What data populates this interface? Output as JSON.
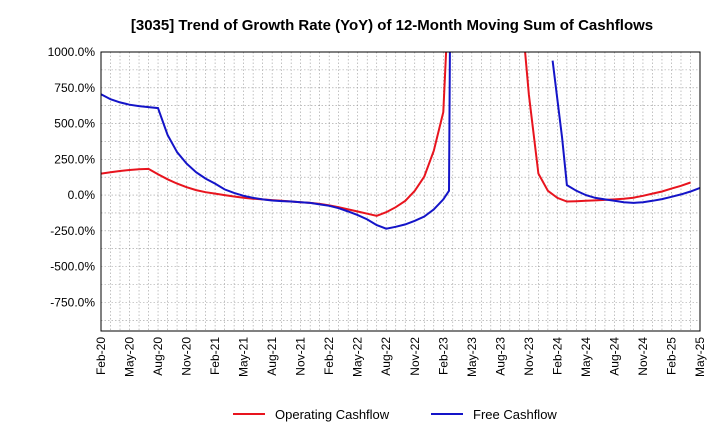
{
  "chart_data": {
    "type": "line",
    "title": "[3035]  Trend of Growth Rate (YoY) of 12-Month Moving Sum of Cashflows",
    "xlabel": "",
    "ylabel": "",
    "ylim": [
      -950,
      1000
    ],
    "grid": true,
    "legend_position": "bottom",
    "y_ticks": [
      1000,
      750,
      500,
      250,
      0,
      -250,
      -500,
      -750
    ],
    "y_tick_labels": [
      "1000.0%",
      "750.0%",
      "500.0%",
      "250.0%",
      "0.0%",
      "-250.0%",
      "-500.0%",
      "-750.0%"
    ],
    "x_ticks": [
      "Feb-20",
      "May-20",
      "Aug-20",
      "Nov-20",
      "Feb-21",
      "May-21",
      "Aug-21",
      "Nov-21",
      "Feb-22",
      "May-22",
      "Aug-22",
      "Nov-22",
      "Feb-23",
      "May-23",
      "Aug-23",
      "Nov-23",
      "Feb-24",
      "May-24",
      "Aug-24",
      "Nov-24",
      "Feb-25",
      "May-25"
    ],
    "series": [
      {
        "name": "Operating Cashflow",
        "color": "#e8141e",
        "points": [
          [
            0,
            150
          ],
          [
            1,
            160
          ],
          [
            2,
            168
          ],
          [
            3,
            175
          ],
          [
            4,
            180
          ],
          [
            5,
            183
          ],
          [
            6,
            145
          ],
          [
            7,
            110
          ],
          [
            8,
            80
          ],
          [
            9,
            55
          ],
          [
            10,
            35
          ],
          [
            11,
            20
          ],
          [
            12,
            10
          ],
          [
            13,
            0
          ],
          [
            14,
            -10
          ],
          [
            15,
            -18
          ],
          [
            16,
            -25
          ],
          [
            17,
            -30
          ],
          [
            18,
            -35
          ],
          [
            19,
            -40
          ],
          [
            20,
            -45
          ],
          [
            21,
            -50
          ],
          [
            22,
            -55
          ],
          [
            23,
            -62
          ],
          [
            24,
            -72
          ],
          [
            25,
            -85
          ],
          [
            26,
            -100
          ],
          [
            27,
            -115
          ],
          [
            28,
            -130
          ],
          [
            29,
            -145
          ],
          [
            30,
            -120
          ],
          [
            31,
            -85
          ],
          [
            32,
            -40
          ],
          [
            33,
            30
          ],
          [
            34,
            130
          ],
          [
            35,
            310
          ],
          [
            36,
            580
          ],
          [
            36.3,
            1000
          ]
        ],
        "points_b": [
          [
            44.6,
            1000
          ],
          [
            45,
            700
          ],
          [
            46,
            150
          ],
          [
            47,
            30
          ],
          [
            48,
            -20
          ],
          [
            49,
            -45
          ],
          [
            50,
            -43
          ],
          [
            51,
            -40
          ],
          [
            52,
            -37
          ],
          [
            53,
            -34
          ],
          [
            54,
            -30
          ],
          [
            55,
            -25
          ],
          [
            56,
            -18
          ],
          [
            57,
            -5
          ],
          [
            58,
            10
          ],
          [
            59,
            25
          ],
          [
            60,
            45
          ],
          [
            61,
            65
          ],
          [
            62,
            88
          ]
        ]
      },
      {
        "name": "Free Cashflow",
        "color": "#1414c8",
        "points": [
          [
            0,
            705
          ],
          [
            1,
            670
          ],
          [
            2,
            648
          ],
          [
            3,
            632
          ],
          [
            4,
            622
          ],
          [
            5,
            615
          ],
          [
            6,
            608
          ],
          [
            7,
            420
          ],
          [
            8,
            300
          ],
          [
            9,
            220
          ],
          [
            10,
            160
          ],
          [
            11,
            115
          ],
          [
            12,
            80
          ],
          [
            13,
            40
          ],
          [
            14,
            15
          ],
          [
            15,
            -5
          ],
          [
            16,
            -20
          ],
          [
            17,
            -30
          ],
          [
            18,
            -38
          ],
          [
            19,
            -42
          ],
          [
            20,
            -45
          ],
          [
            21,
            -50
          ],
          [
            22,
            -55
          ],
          [
            23,
            -65
          ],
          [
            24,
            -75
          ],
          [
            25,
            -92
          ],
          [
            26,
            -115
          ],
          [
            27,
            -140
          ],
          [
            28,
            -170
          ],
          [
            29,
            -210
          ],
          [
            30,
            -235
          ],
          [
            31,
            -222
          ],
          [
            32,
            -205
          ],
          [
            33,
            -180
          ],
          [
            34,
            -150
          ],
          [
            35,
            -100
          ],
          [
            36,
            -30
          ],
          [
            36.6,
            30
          ],
          [
            36.7,
            1000
          ]
        ],
        "points_b": [
          [
            47.5,
            940
          ],
          [
            48.5,
            400
          ],
          [
            49,
            70
          ],
          [
            50,
            30
          ],
          [
            51,
            0
          ],
          [
            52,
            -20
          ],
          [
            53,
            -30
          ],
          [
            54,
            -40
          ],
          [
            55,
            -50
          ],
          [
            56,
            -55
          ],
          [
            57,
            -50
          ],
          [
            58,
            -40
          ],
          [
            59,
            -28
          ],
          [
            60,
            -12
          ],
          [
            61,
            5
          ],
          [
            62,
            25
          ],
          [
            63,
            50
          ],
          [
            64,
            75
          ]
        ]
      }
    ]
  }
}
